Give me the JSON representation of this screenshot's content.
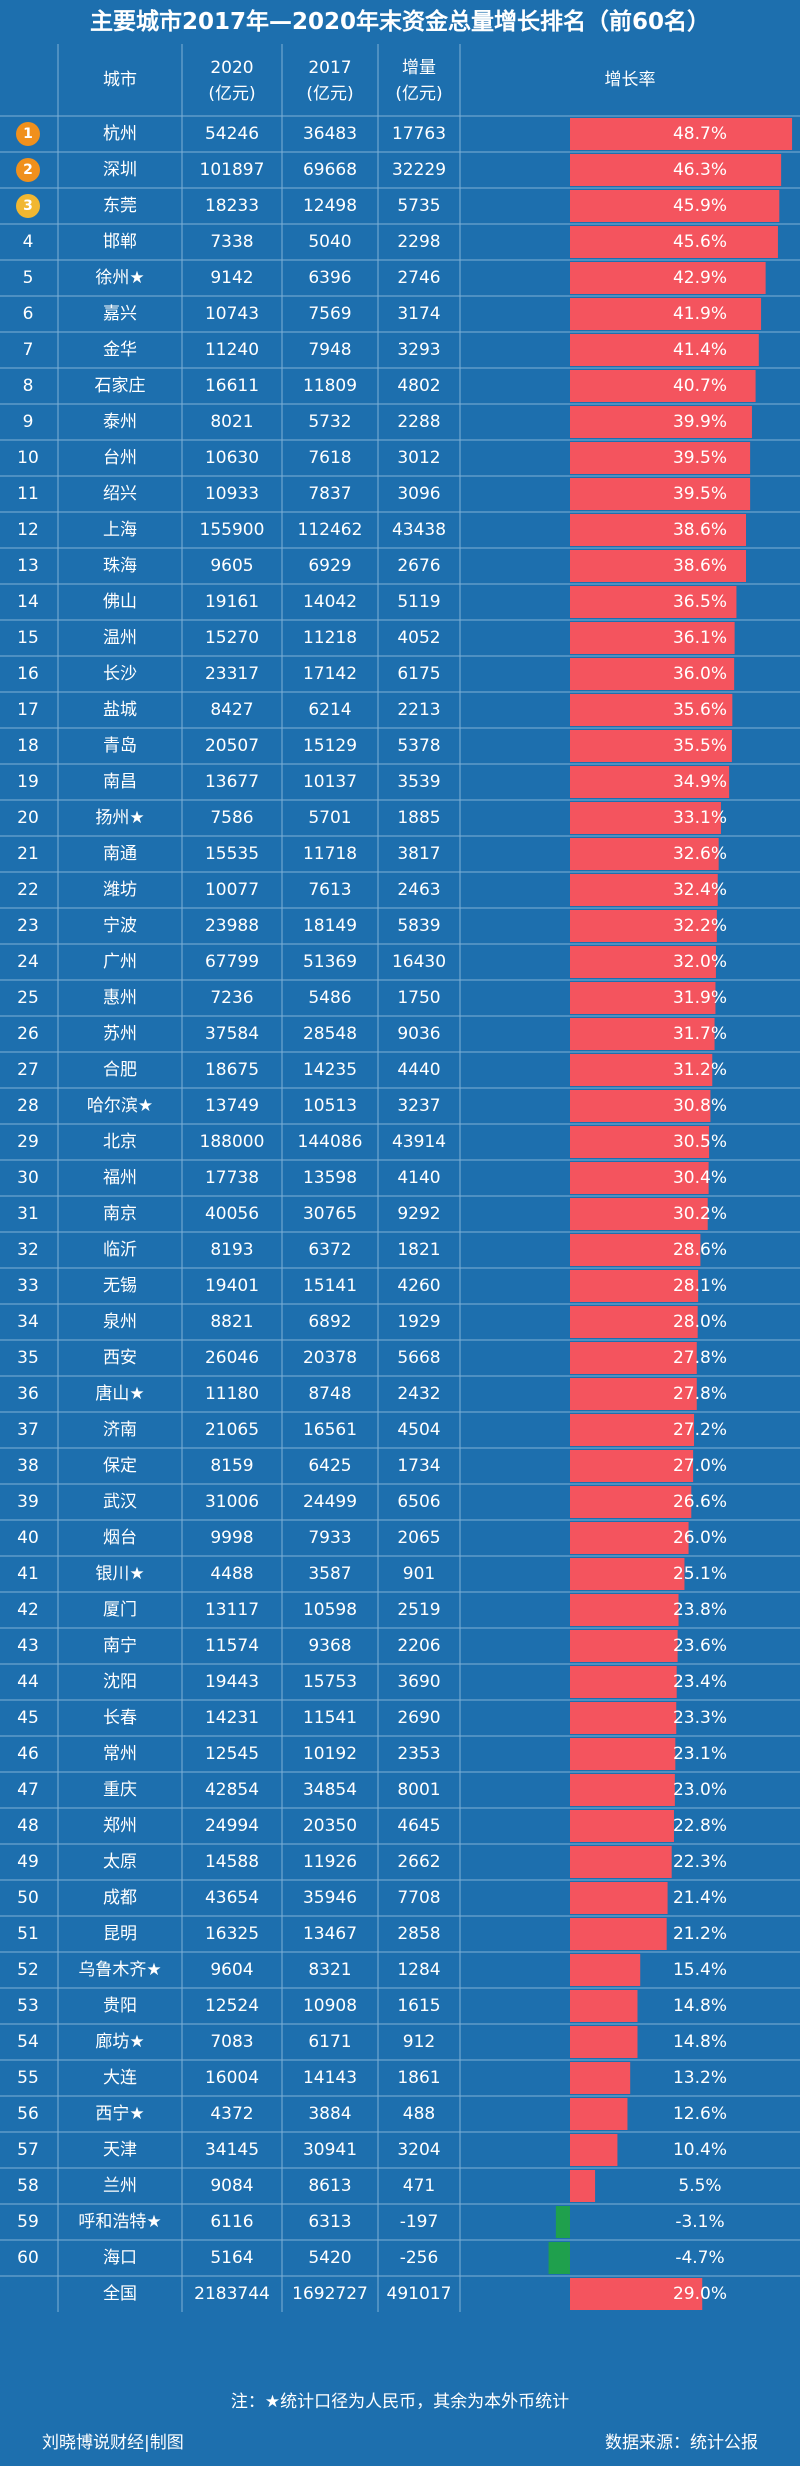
{
  "title": "主要城市2017年—2020年末资金总量增长排名（前60名）",
  "chart_data": {
    "type": "bar",
    "title": "主要城市2017年—2020年末资金总量增长排名（前60名）",
    "columns": [
      "城市",
      "2020\n(亿元)",
      "2017\n(亿元)",
      "增量\n(亿元)",
      "增长率"
    ],
    "rows": [
      {
        "rank": "1",
        "city": "杭州",
        "v2020": 54246,
        "v2017": 36483,
        "inc": 17763,
        "rate": 48.7
      },
      {
        "rank": "2",
        "city": "深圳",
        "v2020": 101897,
        "v2017": 69668,
        "inc": 32229,
        "rate": 46.3
      },
      {
        "rank": "3",
        "city": "东莞",
        "v2020": 18233,
        "v2017": 12498,
        "inc": 5735,
        "rate": 45.9
      },
      {
        "rank": "4",
        "city": "邯郸",
        "v2020": 7338,
        "v2017": 5040,
        "inc": 2298,
        "rate": 45.6
      },
      {
        "rank": "5",
        "city": "徐州★",
        "v2020": 9142,
        "v2017": 6396,
        "inc": 2746,
        "rate": 42.9
      },
      {
        "rank": "6",
        "city": "嘉兴",
        "v2020": 10743,
        "v2017": 7569,
        "inc": 3174,
        "rate": 41.9
      },
      {
        "rank": "7",
        "city": "金华",
        "v2020": 11240,
        "v2017": 7948,
        "inc": 3293,
        "rate": 41.4
      },
      {
        "rank": "8",
        "city": "石家庄",
        "v2020": 16611,
        "v2017": 11809,
        "inc": 4802,
        "rate": 40.7
      },
      {
        "rank": "9",
        "city": "泰州",
        "v2020": 8021,
        "v2017": 5732,
        "inc": 2288,
        "rate": 39.9
      },
      {
        "rank": "10",
        "city": "台州",
        "v2020": 10630,
        "v2017": 7618,
        "inc": 3012,
        "rate": 39.5
      },
      {
        "rank": "11",
        "city": "绍兴",
        "v2020": 10933,
        "v2017": 7837,
        "inc": 3096,
        "rate": 39.5
      },
      {
        "rank": "12",
        "city": "上海",
        "v2020": 155900,
        "v2017": 112462,
        "inc": 43438,
        "rate": 38.6
      },
      {
        "rank": "13",
        "city": "珠海",
        "v2020": 9605,
        "v2017": 6929,
        "inc": 2676,
        "rate": 38.6
      },
      {
        "rank": "14",
        "city": "佛山",
        "v2020": 19161,
        "v2017": 14042,
        "inc": 5119,
        "rate": 36.5
      },
      {
        "rank": "15",
        "city": "温州",
        "v2020": 15270,
        "v2017": 11218,
        "inc": 4052,
        "rate": 36.1
      },
      {
        "rank": "16",
        "city": "长沙",
        "v2020": 23317,
        "v2017": 17142,
        "inc": 6175,
        "rate": 36.0
      },
      {
        "rank": "17",
        "city": "盐城",
        "v2020": 8427,
        "v2017": 6214,
        "inc": 2213,
        "rate": 35.6
      },
      {
        "rank": "18",
        "city": "青岛",
        "v2020": 20507,
        "v2017": 15129,
        "inc": 5378,
        "rate": 35.5
      },
      {
        "rank": "19",
        "city": "南昌",
        "v2020": 13677,
        "v2017": 10137,
        "inc": 3539,
        "rate": 34.9
      },
      {
        "rank": "20",
        "city": "扬州★",
        "v2020": 7586,
        "v2017": 5701,
        "inc": 1885,
        "rate": 33.1
      },
      {
        "rank": "21",
        "city": "南通",
        "v2020": 15535,
        "v2017": 11718,
        "inc": 3817,
        "rate": 32.6
      },
      {
        "rank": "22",
        "city": "潍坊",
        "v2020": 10077,
        "v2017": 7613,
        "inc": 2463,
        "rate": 32.4
      },
      {
        "rank": "23",
        "city": "宁波",
        "v2020": 23988,
        "v2017": 18149,
        "inc": 5839,
        "rate": 32.2
      },
      {
        "rank": "24",
        "city": "广州",
        "v2020": 67799,
        "v2017": 51369,
        "inc": 16430,
        "rate": 32.0
      },
      {
        "rank": "25",
        "city": "惠州",
        "v2020": 7236,
        "v2017": 5486,
        "inc": 1750,
        "rate": 31.9
      },
      {
        "rank": "26",
        "city": "苏州",
        "v2020": 37584,
        "v2017": 28548,
        "inc": 9036,
        "rate": 31.7
      },
      {
        "rank": "27",
        "city": "合肥",
        "v2020": 18675,
        "v2017": 14235,
        "inc": 4440,
        "rate": 31.2
      },
      {
        "rank": "28",
        "city": "哈尔滨★",
        "v2020": 13749,
        "v2017": 10513,
        "inc": 3237,
        "rate": 30.8
      },
      {
        "rank": "29",
        "city": "北京",
        "v2020": 188000,
        "v2017": 144086,
        "inc": 43914,
        "rate": 30.5
      },
      {
        "rank": "30",
        "city": "福州",
        "v2020": 17738,
        "v2017": 13598,
        "inc": 4140,
        "rate": 30.4
      },
      {
        "rank": "31",
        "city": "南京",
        "v2020": 40056,
        "v2017": 30765,
        "inc": 9292,
        "rate": 30.2
      },
      {
        "rank": "32",
        "city": "临沂",
        "v2020": 8193,
        "v2017": 6372,
        "inc": 1821,
        "rate": 28.6
      },
      {
        "rank": "33",
        "city": "无锡",
        "v2020": 19401,
        "v2017": 15141,
        "inc": 4260,
        "rate": 28.1
      },
      {
        "rank": "34",
        "city": "泉州",
        "v2020": 8821,
        "v2017": 6892,
        "inc": 1929,
        "rate": 28.0
      },
      {
        "rank": "35",
        "city": "西安",
        "v2020": 26046,
        "v2017": 20378,
        "inc": 5668,
        "rate": 27.8
      },
      {
        "rank": "36",
        "city": "唐山★",
        "v2020": 11180,
        "v2017": 8748,
        "inc": 2432,
        "rate": 27.8
      },
      {
        "rank": "37",
        "city": "济南",
        "v2020": 21065,
        "v2017": 16561,
        "inc": 4504,
        "rate": 27.2
      },
      {
        "rank": "38",
        "city": "保定",
        "v2020": 8159,
        "v2017": 6425,
        "inc": 1734,
        "rate": 27.0
      },
      {
        "rank": "39",
        "city": "武汉",
        "v2020": 31006,
        "v2017": 24499,
        "inc": 6506,
        "rate": 26.6
      },
      {
        "rank": "40",
        "city": "烟台",
        "v2020": 9998,
        "v2017": 7933,
        "inc": 2065,
        "rate": 26.0
      },
      {
        "rank": "41",
        "city": "银川★",
        "v2020": 4488,
        "v2017": 3587,
        "inc": 901,
        "rate": 25.1
      },
      {
        "rank": "42",
        "city": "厦门",
        "v2020": 13117,
        "v2017": 10598,
        "inc": 2519,
        "rate": 23.8
      },
      {
        "rank": "43",
        "city": "南宁",
        "v2020": 11574,
        "v2017": 9368,
        "inc": 2206,
        "rate": 23.6
      },
      {
        "rank": "44",
        "city": "沈阳",
        "v2020": 19443,
        "v2017": 15753,
        "inc": 3690,
        "rate": 23.4
      },
      {
        "rank": "45",
        "city": "长春",
        "v2020": 14231,
        "v2017": 11541,
        "inc": 2690,
        "rate": 23.3
      },
      {
        "rank": "46",
        "city": "常州",
        "v2020": 12545,
        "v2017": 10192,
        "inc": 2353,
        "rate": 23.1
      },
      {
        "rank": "47",
        "city": "重庆",
        "v2020": 42854,
        "v2017": 34854,
        "inc": 8001,
        "rate": 23.0
      },
      {
        "rank": "48",
        "city": "郑州",
        "v2020": 24994,
        "v2017": 20350,
        "inc": 4645,
        "rate": 22.8
      },
      {
        "rank": "49",
        "city": "太原",
        "v2020": 14588,
        "v2017": 11926,
        "inc": 2662,
        "rate": 22.3
      },
      {
        "rank": "50",
        "city": "成都",
        "v2020": 43654,
        "v2017": 35946,
        "inc": 7708,
        "rate": 21.4
      },
      {
        "rank": "51",
        "city": "昆明",
        "v2020": 16325,
        "v2017": 13467,
        "inc": 2858,
        "rate": 21.2
      },
      {
        "rank": "52",
        "city": "乌鲁木齐★",
        "v2020": 9604,
        "v2017": 8321,
        "inc": 1284,
        "rate": 15.4
      },
      {
        "rank": "53",
        "city": "贵阳",
        "v2020": 12524,
        "v2017": 10908,
        "inc": 1615,
        "rate": 14.8
      },
      {
        "rank": "54",
        "city": "廊坊★",
        "v2020": 7083,
        "v2017": 6171,
        "inc": 912,
        "rate": 14.8
      },
      {
        "rank": "55",
        "city": "大连",
        "v2020": 16004,
        "v2017": 14143,
        "inc": 1861,
        "rate": 13.2
      },
      {
        "rank": "56",
        "city": "西宁★",
        "v2020": 4372,
        "v2017": 3884,
        "inc": 488,
        "rate": 12.6
      },
      {
        "rank": "57",
        "city": "天津",
        "v2020": 34145,
        "v2017": 30941,
        "inc": 3204,
        "rate": 10.4
      },
      {
        "rank": "58",
        "city": "兰州",
        "v2020": 9084,
        "v2017": 8613,
        "inc": 471,
        "rate": 5.5
      },
      {
        "rank": "59",
        "city": "呼和浩特★",
        "v2020": 6116,
        "v2017": 6313,
        "inc": -197,
        "rate": -3.1
      },
      {
        "rank": "60",
        "city": "海口",
        "v2020": 5164,
        "v2017": 5420,
        "inc": -256,
        "rate": -4.7
      },
      {
        "rank": "",
        "city": "全国",
        "v2020": 2183744,
        "v2017": 1692727,
        "inc": 491017,
        "rate": 29.0
      }
    ],
    "rate_axis_max": 50,
    "colors": {
      "bg": "#1d6fae",
      "grid": "#7fb0d6",
      "positive": "#f4545e",
      "negative": "#1fa04d",
      "text": "#ffffff",
      "medal_orange": "#f0901c",
      "medal_yellow": "#f1b731"
    }
  },
  "notes": "注：★统计口径为人民币，其余为本外币统计",
  "footer": {
    "credit": "刘晓博说财经|制图",
    "source": "数据来源：统计公报"
  }
}
